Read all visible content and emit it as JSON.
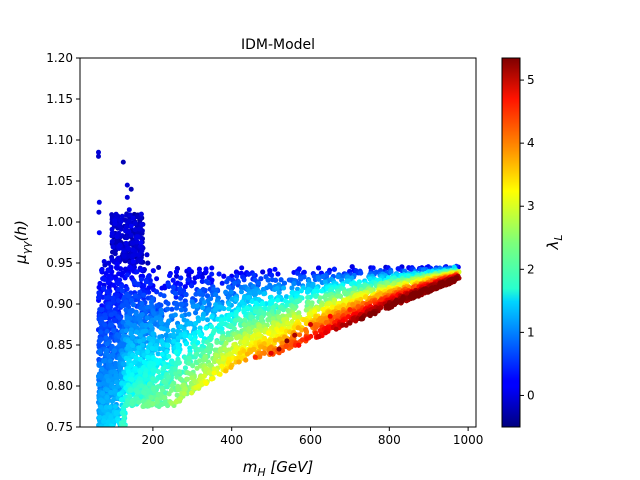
{
  "chart_data": {
    "type": "scatter",
    "title": "IDM-Model",
    "xlabel": {
      "base": "m",
      "sub": "H",
      "unit": "[GeV]"
    },
    "ylabel": {
      "base": "μ",
      "sub": "γγ",
      "tail": "(h)"
    },
    "xlim": [
      15,
      1020
    ],
    "ylim": [
      0.75,
      1.2
    ],
    "xticks": [
      200,
      400,
      600,
      800,
      1000
    ],
    "xtick_labels": [
      "200",
      "400",
      "600",
      "800",
      "1000"
    ],
    "yticks": [
      0.75,
      0.8,
      0.85,
      0.9,
      0.95,
      1.0,
      1.05,
      1.1,
      1.15,
      1.2
    ],
    "ytick_labels": [
      "0.75",
      "0.80",
      "0.85",
      "0.90",
      "0.95",
      "1.00",
      "1.05",
      "1.10",
      "1.15",
      "1.20"
    ],
    "colormap": "jet",
    "colorbar": {
      "label": {
        "base": "λ",
        "sub": "L"
      },
      "range": [
        -0.5,
        5.35
      ],
      "ticks": [
        0,
        1,
        2,
        3,
        4,
        5
      ],
      "tick_labels": [
        "0",
        "1",
        "2",
        "3",
        "4",
        "5"
      ]
    },
    "grid": false,
    "legend": "none",
    "points": [
      [
        62,
        1.085,
        0.0
      ],
      [
        62,
        1.08,
        -0.1
      ],
      [
        64,
        1.024,
        0.1
      ],
      [
        63,
        1.012,
        0.0
      ],
      [
        64,
        0.987,
        0.2
      ],
      [
        125,
        1.073,
        -0.2
      ],
      [
        135,
        1.03,
        0.0
      ],
      [
        140,
        1.015,
        0.1
      ],
      [
        145,
        0.995,
        0.2
      ],
      [
        150,
        1.005,
        -0.1
      ],
      [
        145,
        1.04,
        -0.2
      ],
      [
        135,
        1.045,
        0.0
      ],
      [
        170,
        0.975,
        0.2
      ],
      [
        160,
        0.99,
        -0.1
      ],
      [
        185,
        0.96,
        0.0
      ],
      [
        62,
        0.78,
        1.0
      ],
      [
        63,
        0.81,
        0.8
      ],
      [
        64,
        0.83,
        0.6
      ],
      [
        66,
        0.86,
        0.5
      ],
      [
        65,
        0.89,
        0.3
      ],
      [
        100,
        0.755,
        0.6
      ],
      [
        110,
        0.76,
        0.9
      ],
      [
        120,
        0.758,
        1.2
      ],
      [
        105,
        0.775,
        1.4
      ],
      [
        115,
        0.79,
        1.6
      ],
      [
        180,
        0.78,
        1.7
      ],
      [
        220,
        0.78,
        1.8
      ],
      [
        240,
        0.78,
        1.6
      ],
      [
        300,
        0.8,
        2.0
      ],
      [
        350,
        0.81,
        2.4
      ],
      [
        420,
        0.83,
        3.2
      ],
      [
        460,
        0.835,
        4.4
      ],
      [
        500,
        0.84,
        4.8
      ],
      [
        520,
        0.845,
        5.2
      ],
      [
        540,
        0.855,
        5.3
      ],
      [
        560,
        0.862,
        5.1
      ],
      [
        600,
        0.875,
        4.9
      ],
      [
        650,
        0.885,
        4.6
      ],
      [
        700,
        0.893,
        4.4
      ],
      [
        800,
        0.905,
        4.2
      ],
      [
        900,
        0.92,
        3.8
      ],
      [
        950,
        0.935,
        3.2
      ],
      [
        965,
        0.945,
        1.5
      ],
      [
        970,
        0.946,
        0.5
      ],
      [
        975,
        0.945,
        0.0
      ]
    ]
  }
}
